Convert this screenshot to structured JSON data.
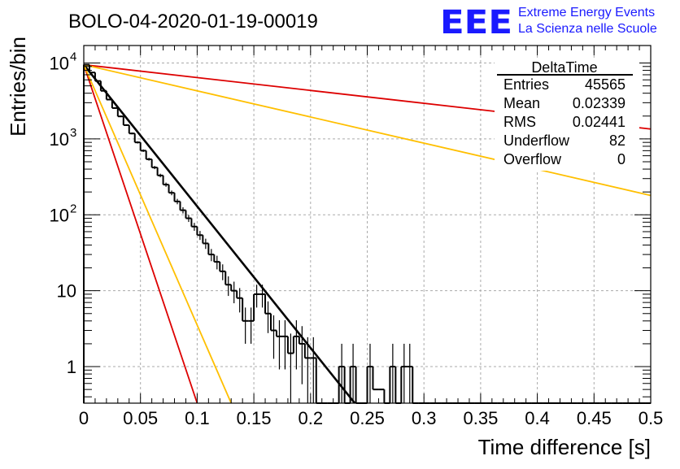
{
  "title": "BOLO-04-2020-01-19-00019",
  "logo": {
    "mark": "EEE",
    "line1": "Extreme Energy Events",
    "line2": "La Scienza nelle Scuole",
    "color": "#1a1aff"
  },
  "stats_box": {
    "name": "DeltaTime",
    "rows": [
      {
        "label": "Entries",
        "value": "45565"
      },
      {
        "label": "Mean",
        "value": "0.02339"
      },
      {
        "label": "RMS",
        "value": "0.02441"
      },
      {
        "label": "Underflow",
        "value": "82"
      },
      {
        "label": "Overflow",
        "value": "0"
      }
    ]
  },
  "chart_data": {
    "type": "line",
    "title": "BOLO-04-2020-01-19-00019",
    "xlabel": "Time difference [s]",
    "ylabel": "Entries/bin",
    "xlim": [
      0,
      0.5
    ],
    "ylim": [
      0.33,
      17000
    ],
    "y_scale": "log",
    "grid": true,
    "x_ticks": [
      "0",
      "0.05",
      "0.1",
      "0.15",
      "0.2",
      "0.25",
      "0.3",
      "0.35",
      "0.4",
      "0.45",
      "0.5"
    ],
    "y_ticks": [
      {
        "value": 1,
        "base": "1",
        "exp": ""
      },
      {
        "value": 10,
        "base": "10",
        "exp": ""
      },
      {
        "value": 100,
        "base": "10",
        "exp": "2"
      },
      {
        "value": 1000,
        "base": "10",
        "exp": "3"
      },
      {
        "value": 10000,
        "base": "10",
        "exp": "4"
      }
    ],
    "histogram": {
      "color": "#000000",
      "bin_width": 0.005,
      "x_start": 0,
      "values": [
        9500,
        7500,
        5800,
        4300,
        3300,
        2550,
        1980,
        1520,
        1180,
        900,
        700,
        540,
        420,
        330,
        250,
        195,
        150,
        115,
        90,
        70,
        54,
        42,
        30,
        24,
        18,
        12,
        10,
        8,
        4,
        4,
        9,
        9,
        5,
        3,
        2.5,
        2.5,
        1.5,
        2.5,
        2,
        1.3,
        1.3,
        0.25,
        0,
        0,
        0,
        1,
        0,
        1,
        0,
        0,
        1,
        0.5,
        0.5,
        0,
        1,
        0,
        1,
        1,
        0.25,
        0,
        0,
        0,
        0,
        0,
        0,
        0,
        0,
        0,
        0,
        0,
        0,
        0,
        0,
        0,
        0,
        0,
        0,
        0,
        0,
        0,
        0,
        0,
        0,
        0,
        0,
        0,
        0,
        0,
        0,
        0,
        0,
        0,
        0,
        0,
        0,
        0,
        0,
        0,
        0,
        0
      ]
    },
    "fits": [
      {
        "color": "#000000",
        "y0": 9500,
        "y_end": 0.33,
        "x_end": 0.239,
        "width": 2.6
      },
      {
        "color": "#dd0000",
        "y0": 9500,
        "y_end": 0.33,
        "x_end": 0.1,
        "width": 1.8
      },
      {
        "color": "#ffbf00",
        "y0": 9500,
        "y_end": 0.33,
        "x_end": 0.13,
        "width": 1.8
      },
      {
        "color": "#dd0000",
        "y0": 9500,
        "y_end": 1350,
        "x_end": 0.5,
        "width": 1.8
      },
      {
        "color": "#ffbf00",
        "y0": 9500,
        "y_end": 180,
        "x_end": 0.5,
        "width": 1.8
      }
    ]
  }
}
